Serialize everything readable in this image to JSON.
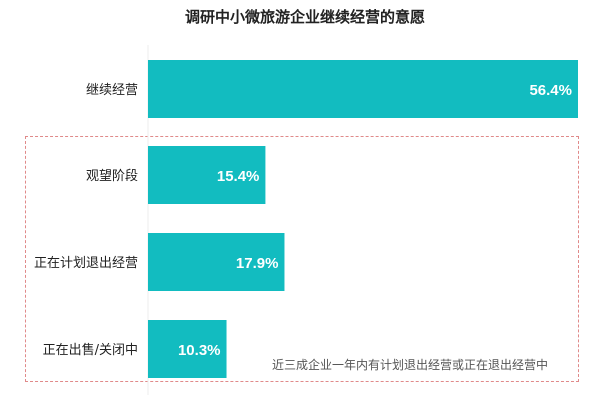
{
  "chart_data": {
    "type": "bar",
    "orientation": "horizontal",
    "title": "调研中小微旅游企业继续经营的意愿",
    "categories": [
      "继续经营",
      "观望阶段",
      "正在计划退出经营",
      "正在出售/关闭中"
    ],
    "values": [
      56.4,
      15.4,
      17.9,
      10.3
    ],
    "data_labels": [
      "56.4%",
      "15.4%",
      "17.9%",
      "10.3%"
    ],
    "unit": "%",
    "bar_color": "#12bcc0",
    "grid": false,
    "annotation": "近三成企业一年内有计划退出经营或正在退出经营中",
    "highlight_box_color": "#e08a8a"
  }
}
